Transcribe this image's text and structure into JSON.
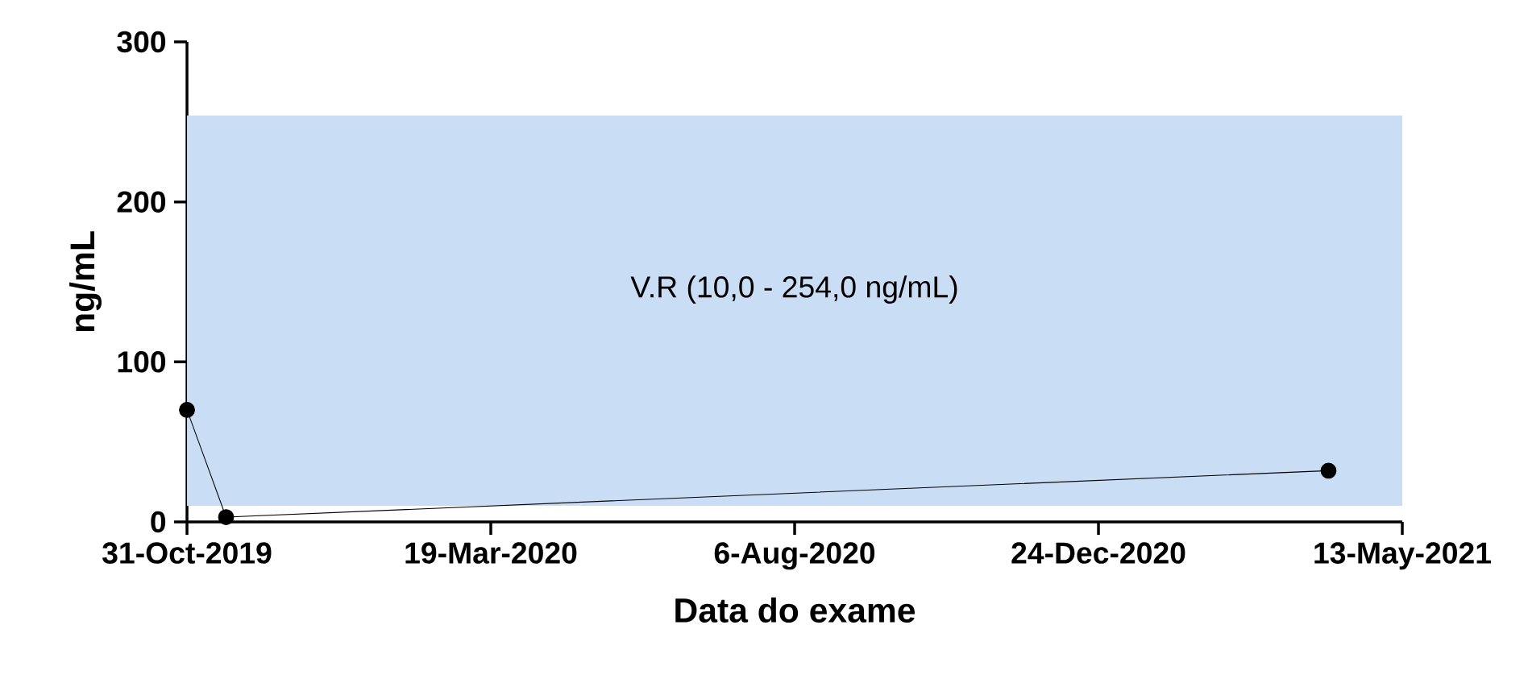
{
  "chart_data": {
    "type": "line",
    "xlabel": "Data do exame",
    "ylabel": "ng/mL",
    "x": [
      "2019-10-31",
      "2019-11-18",
      "2021-04-09"
    ],
    "series": [
      {
        "color": "#000000",
        "values": [
          70,
          3,
          32
        ]
      }
    ],
    "xlim": [
      "2019-10-31",
      "2021-05-13"
    ],
    "xticks": [
      {
        "value": "2019-10-31",
        "label": "31-Oct-2019"
      },
      {
        "value": "2020-03-19",
        "label": "19-Mar-2020"
      },
      {
        "value": "2020-08-06",
        "label": "6-Aug-2020"
      },
      {
        "value": "2020-12-24",
        "label": "24-Dec-2020"
      },
      {
        "value": "2021-05-13",
        "label": "13-May-2021"
      }
    ],
    "ylim": [
      0,
      300
    ],
    "yticks": [
      0,
      100,
      200,
      300
    ],
    "bands": [
      {
        "axis": "y",
        "from": 10,
        "to": 254,
        "label": "V.R (10,0 - 254,0 ng/mL)",
        "color": "#c9ddf5"
      }
    ],
    "marker": "circle",
    "line_style": "solid",
    "grid": false
  }
}
